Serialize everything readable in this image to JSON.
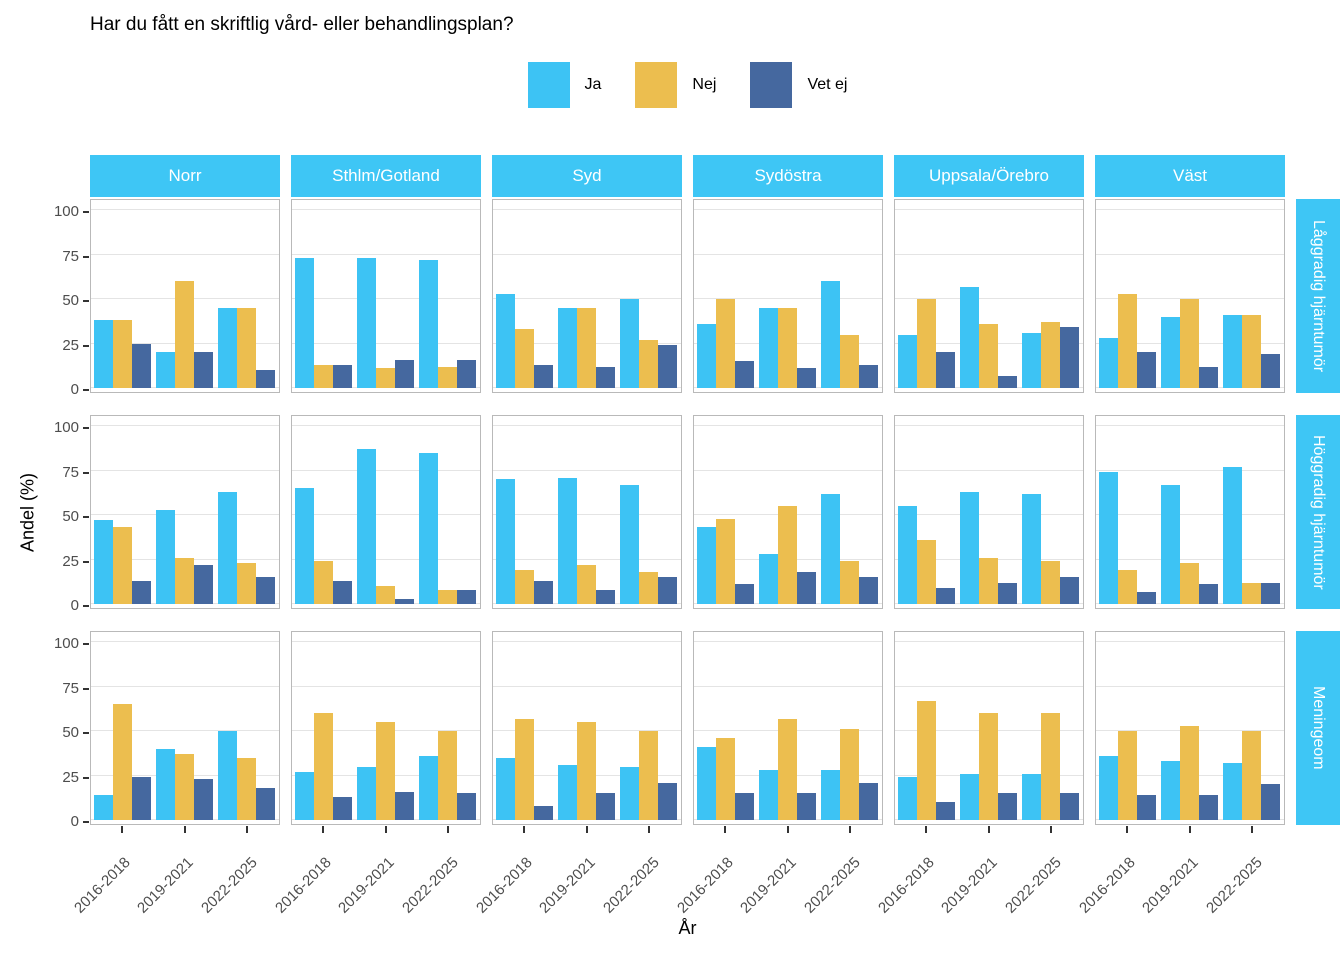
{
  "title": "Har du fått en skriftlig vård- eller behandlingsplan?",
  "legend": {
    "items": [
      {
        "label": "Ja",
        "color": "#3DC3F4"
      },
      {
        "label": "Nej",
        "color": "#ECBE4F"
      },
      {
        "label": "Vet ej",
        "color": "#45689F"
      }
    ]
  },
  "colors": {
    "facet_strip": "#3EC6F5",
    "panel_border": "#b9b9b9",
    "gridline": "#e4e4e4",
    "axis_text": "#4d4d4d"
  },
  "chart_data": {
    "type": "bar",
    "title": "Har du fått en skriftlig vård- eller behandlingsplan?",
    "xlabel": "År",
    "ylabel": "Andel (%)",
    "yticks": [
      0,
      25,
      50,
      75,
      100
    ],
    "ylim": [
      0,
      105
    ],
    "grid": "major-horizontal",
    "legend_position": "top-center",
    "facet_columns": [
      "Norr",
      "Sthlm/Gotland",
      "Syd",
      "Sydöstra",
      "Uppsala/Örebro",
      "Väst"
    ],
    "facet_rows": [
      "Låggradig hjärntumör",
      "Höggradig hjärntumör",
      "Meningeom"
    ],
    "categories": [
      "2016-2018",
      "2019-2021",
      "2022-2025"
    ],
    "series_names": [
      "Ja",
      "Nej",
      "Vet ej"
    ],
    "series_colors": [
      "#3DC3F4",
      "#ECBE4F",
      "#45689F"
    ],
    "values_order": "values[facet_row][facet_column][category][series] in percent",
    "values": [
      [
        [
          [
            38,
            38,
            25
          ],
          [
            20,
            60,
            20
          ],
          [
            45,
            45,
            10
          ]
        ],
        [
          [
            73,
            13,
            13
          ],
          [
            73,
            11,
            16
          ],
          [
            72,
            12,
            16
          ]
        ],
        [
          [
            53,
            33,
            13
          ],
          [
            45,
            45,
            12
          ],
          [
            50,
            27,
            24
          ]
        ],
        [
          [
            36,
            50,
            15
          ],
          [
            45,
            45,
            11
          ],
          [
            60,
            30,
            13
          ]
        ],
        [
          [
            30,
            50,
            20
          ],
          [
            57,
            36,
            7
          ],
          [
            31,
            37,
            34
          ]
        ],
        [
          [
            28,
            53,
            20
          ],
          [
            40,
            50,
            12
          ],
          [
            41,
            41,
            19
          ]
        ]
      ],
      [
        [
          [
            47,
            43,
            13
          ],
          [
            53,
            26,
            22
          ],
          [
            63,
            23,
            15
          ]
        ],
        [
          [
            65,
            24,
            13
          ],
          [
            87,
            10,
            3
          ],
          [
            85,
            8,
            8
          ]
        ],
        [
          [
            70,
            19,
            13
          ],
          [
            71,
            22,
            8
          ],
          [
            67,
            18,
            15
          ]
        ],
        [
          [
            43,
            48,
            11
          ],
          [
            28,
            55,
            18
          ],
          [
            62,
            24,
            15
          ]
        ],
        [
          [
            55,
            36,
            9
          ],
          [
            63,
            26,
            12
          ],
          [
            62,
            24,
            15
          ]
        ],
        [
          [
            74,
            19,
            7
          ],
          [
            67,
            23,
            11
          ],
          [
            77,
            12,
            12
          ]
        ]
      ],
      [
        [
          [
            14,
            65,
            24
          ],
          [
            40,
            37,
            23
          ],
          [
            50,
            35,
            18
          ]
        ],
        [
          [
            27,
            60,
            13
          ],
          [
            30,
            55,
            16
          ],
          [
            36,
            50,
            15
          ]
        ],
        [
          [
            35,
            57,
            8
          ],
          [
            31,
            55,
            15
          ],
          [
            30,
            50,
            21
          ]
        ],
        [
          [
            41,
            46,
            15
          ],
          [
            28,
            57,
            15
          ],
          [
            28,
            51,
            21
          ]
        ],
        [
          [
            24,
            67,
            10
          ],
          [
            26,
            60,
            15
          ],
          [
            26,
            60,
            15
          ]
        ],
        [
          [
            36,
            50,
            14
          ],
          [
            33,
            53,
            14
          ],
          [
            32,
            50,
            20
          ]
        ]
      ]
    ]
  }
}
